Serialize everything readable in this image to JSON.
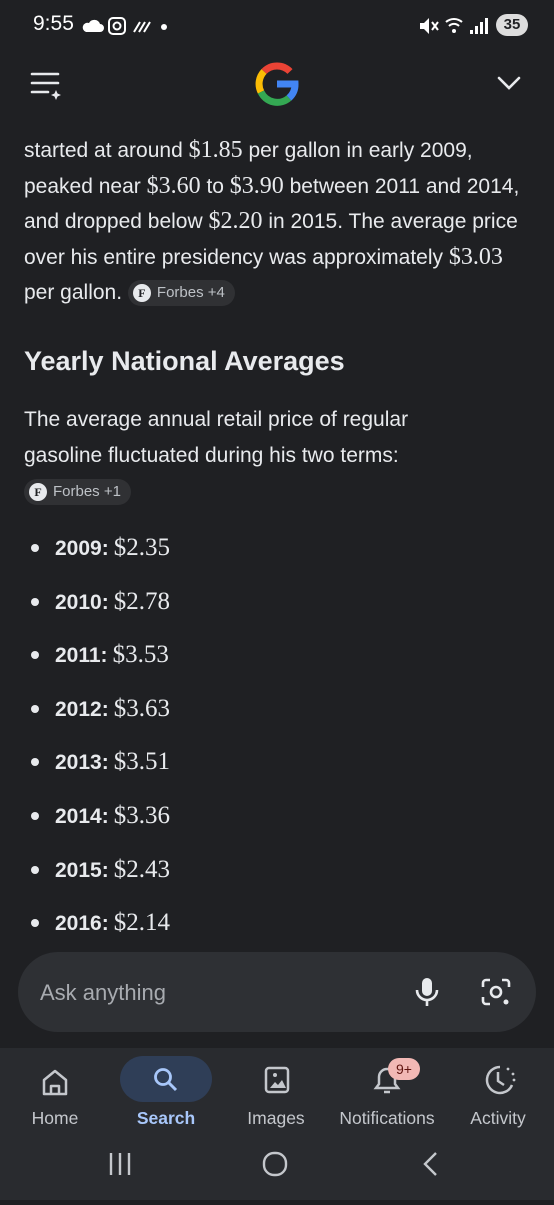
{
  "status_bar": {
    "time": "9:55",
    "battery": "35"
  },
  "summary": {
    "parts": [
      {
        "text": "started at around "
      },
      {
        "money": "$1.85"
      },
      {
        "text": " per gallon in early 2009, peaked near "
      },
      {
        "money": "$3.60"
      },
      {
        "text": " to "
      },
      {
        "money": "$3.90"
      },
      {
        "text": " between 2011 and 2014, and dropped below "
      },
      {
        "money": "$2.20"
      },
      {
        "text": " in 2015. The average price over his entire presidency was approximately "
      },
      {
        "money": "$3.03"
      },
      {
        "text": " per gallon. "
      }
    ],
    "citation": {
      "icon": "F",
      "label": "Forbes +4"
    }
  },
  "section": {
    "heading": "Yearly National Averages",
    "intro": "The average annual retail price of regular gasoline fluctuated during his two terms: ",
    "citation": {
      "icon": "F",
      "label": "Forbes +1"
    },
    "items": [
      {
        "year": "2009:",
        "price": "$2.35"
      },
      {
        "year": "2010:",
        "price": "$2.78"
      },
      {
        "year": "2011:",
        "price": "$3.53"
      },
      {
        "year": "2012:",
        "price": "$3.63"
      },
      {
        "year": "2013:",
        "price": "$3.51"
      },
      {
        "year": "2014:",
        "price": "$3.36"
      },
      {
        "year": "2015:",
        "price": "$2.43"
      },
      {
        "year": "2016:",
        "price": "$2.14"
      }
    ]
  },
  "input": {
    "placeholder": "Ask anything"
  },
  "nav": {
    "items": [
      "Home",
      "Search",
      "Images",
      "Notifications",
      "Activity"
    ],
    "badge": "9+"
  }
}
